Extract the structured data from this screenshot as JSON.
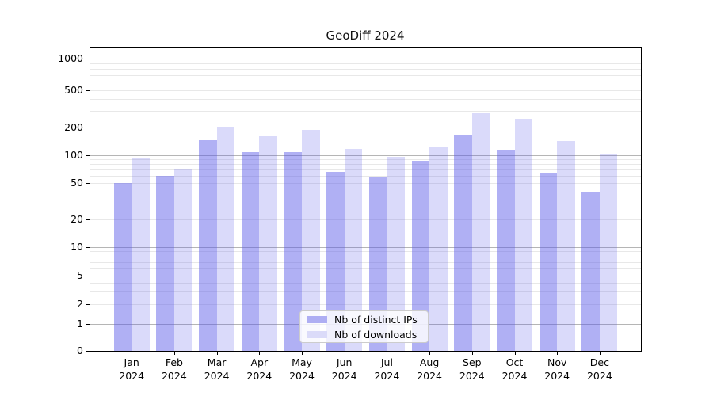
{
  "chart_data": {
    "type": "bar",
    "title": "GeoDiff 2024",
    "x_axis": {
      "months": [
        "Jan",
        "Feb",
        "Mar",
        "Apr",
        "May",
        "Jun",
        "Jul",
        "Aug",
        "Sep",
        "Oct",
        "Nov",
        "Dec"
      ],
      "year": "2024"
    },
    "y_axis": {
      "scale": "symlog",
      "ticks": [
        0,
        1,
        2,
        5,
        10,
        20,
        50,
        100,
        200,
        500,
        1000
      ]
    },
    "series": [
      {
        "name": "Nb of distinct IPs",
        "values": [
          50,
          60,
          145,
          108,
          108,
          66,
          57,
          87,
          165,
          114,
          64,
          40
        ]
      },
      {
        "name": "Nb of downloads",
        "values": [
          95,
          72,
          205,
          160,
          188,
          117,
          96,
          121,
          285,
          246,
          142,
          102
        ]
      }
    ],
    "legend": {
      "position": "lower center"
    },
    "grid": true,
    "colors": {
      "bar_base": "#5757e8",
      "distinct_ips_swatch": "#aeaef3",
      "downloads_swatch": "#dbdbf9",
      "major_grid": "#b5b5b5",
      "minor_grid": "#e8e8e8"
    }
  }
}
